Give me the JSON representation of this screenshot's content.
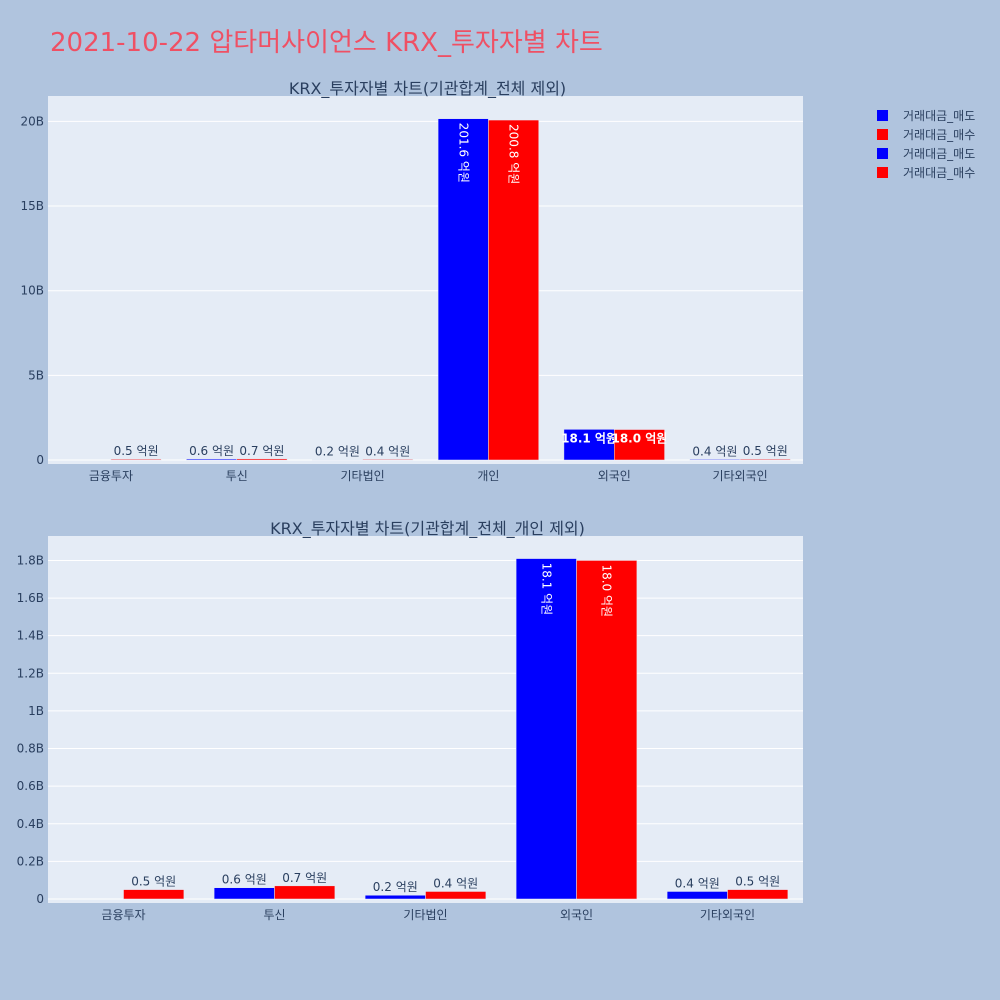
{
  "title": "2021-10-22 압타머사이언스 KRX_투자자별 차트",
  "legend": [
    {
      "label": "거래대금_매도",
      "color": "#0000ff"
    },
    {
      "label": "거래대금_매수",
      "color": "#ff0000"
    },
    {
      "label": "거래대금_매도",
      "color": "#0000ff"
    },
    {
      "label": "거래대금_매수",
      "color": "#ff0000"
    }
  ],
  "chart_data": [
    {
      "type": "bar",
      "title": "KRX_투자자별 차트(기관합계_전체 제외)",
      "categories": [
        "금융투자",
        "투신",
        "기타법인",
        "개인",
        "외국인",
        "기타외국인"
      ],
      "series": [
        {
          "name": "거래대금_매도",
          "color": "#0000ff",
          "values": [
            0,
            60000000,
            20000000,
            20160000000,
            1810000000,
            40000000
          ],
          "labels": [
            "",
            "0.6 억원",
            "0.2 억원",
            "201.6 억원",
            "18.1 억원",
            "0.4 억원"
          ]
        },
        {
          "name": "거래대금_매수",
          "color": "#ff0000",
          "values": [
            50000000,
            70000000,
            40000000,
            20080000000,
            1800000000,
            50000000
          ],
          "labels": [
            "0.5 억원",
            "0.7 억원",
            "0.4 억원",
            "200.8 억원",
            "18.0 억원",
            "0.5 억원"
          ]
        }
      ],
      "ylim": [
        0,
        21500000000
      ],
      "yticks": [
        0,
        5000000000,
        10000000000,
        15000000000,
        20000000000
      ],
      "yticklabels": [
        "0",
        "5B",
        "10B",
        "15B",
        "20B"
      ],
      "grid": true,
      "legend_position": "top-right"
    },
    {
      "type": "bar",
      "title": "KRX_투자자별 차트(기관합계_전체_개인 제외)",
      "categories": [
        "금융투자",
        "투신",
        "기타법인",
        "외국인",
        "기타외국인"
      ],
      "series": [
        {
          "name": "거래대금_매도",
          "color": "#0000ff",
          "values": [
            0,
            60000000,
            20000000,
            1810000000,
            40000000
          ],
          "labels": [
            "",
            "0.6 억원",
            "0.2 억원",
            "18.1 억원",
            "0.4 억원"
          ]
        },
        {
          "name": "거래대금_매수",
          "color": "#ff0000",
          "values": [
            50000000,
            70000000,
            40000000,
            1800000000,
            50000000
          ],
          "labels": [
            "0.5 억원",
            "0.7 억원",
            "0.4 억원",
            "18.0 억원",
            "0.5 억원"
          ]
        }
      ],
      "ylim": [
        0,
        1930000000
      ],
      "yticks": [
        0,
        200000000,
        400000000,
        600000000,
        800000000,
        1000000000,
        1200000000,
        1400000000,
        1600000000,
        1800000000
      ],
      "yticklabels": [
        "0",
        "0.2B",
        "0.4B",
        "0.6B",
        "0.8B",
        "1B",
        "1.2B",
        "1.4B",
        "1.6B",
        "1.8B"
      ],
      "grid": true,
      "legend_position": "top-right"
    }
  ]
}
